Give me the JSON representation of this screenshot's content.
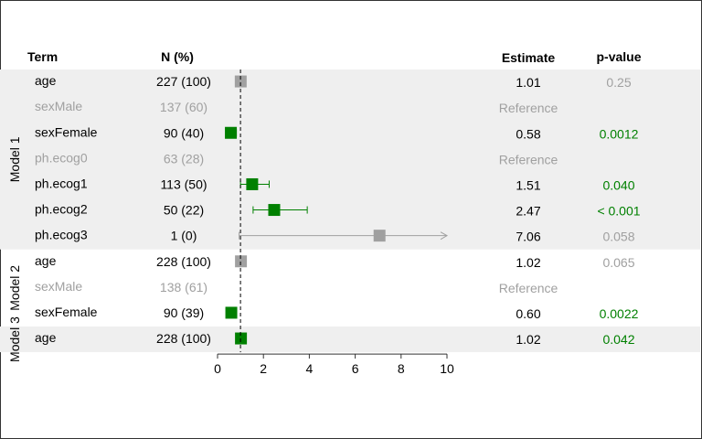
{
  "chart_data": {
    "type": "forest",
    "columns": {
      "term": "Term",
      "n": "N (%)",
      "estimate": "Estimate",
      "pvalue": "p-value"
    },
    "reference_line": 1,
    "xlim": [
      0,
      10
    ],
    "xticks": [
      0,
      2,
      4,
      6,
      8,
      10
    ],
    "colors": {
      "significant": "#008000",
      "not_significant": "#a0a0a0",
      "reference_text": "#a0a0a0",
      "band": "#efefef",
      "text": "#000000"
    },
    "models": [
      {
        "name": "Model 1",
        "rows": [
          {
            "term": "age",
            "n": "227 (100)",
            "estimate": 1.01,
            "lo": 1.0,
            "hi": 1.02,
            "est_label": "1.01",
            "p": "0.25",
            "significant": false,
            "reference": false
          },
          {
            "term": "sexMale",
            "n": "137 (60)",
            "est_label": "Reference",
            "p": "",
            "reference": true
          },
          {
            "term": "sexFemale",
            "n": "90 (40)",
            "estimate": 0.58,
            "lo": 0.41,
            "hi": 0.82,
            "est_label": "0.58",
            "p": "0.0012",
            "significant": true,
            "reference": false
          },
          {
            "term": "ph.ecog0",
            "n": "63 (28)",
            "est_label": "Reference",
            "p": "",
            "reference": true
          },
          {
            "term": "ph.ecog1",
            "n": "113 (50)",
            "estimate": 1.51,
            "lo": 1.0,
            "hi": 2.25,
            "est_label": "1.51",
            "p": "0.040",
            "significant": true,
            "reference": false
          },
          {
            "term": "ph.ecog2",
            "n": "50 (22)",
            "estimate": 2.47,
            "lo": 1.55,
            "hi": 3.91,
            "est_label": "2.47",
            "p": "< 0.001",
            "significant": true,
            "reference": false
          },
          {
            "term": "ph.ecog3",
            "n": "1 (0)",
            "estimate": 7.06,
            "lo": 0.94,
            "hi": 10,
            "arrow": true,
            "est_label": "7.06",
            "p": "0.058",
            "significant": false,
            "reference": false
          }
        ]
      },
      {
        "name": "Model 2",
        "rows": [
          {
            "term": "age",
            "n": "228 (100)",
            "estimate": 1.02,
            "lo": 1.0,
            "hi": 1.03,
            "est_label": "1.02",
            "p": "0.065",
            "significant": false,
            "reference": false
          },
          {
            "term": "sexMale",
            "n": "138 (61)",
            "est_label": "Reference",
            "p": "",
            "reference": true
          },
          {
            "term": "sexFemale",
            "n": "90 (39)",
            "estimate": 0.6,
            "lo": 0.43,
            "hi": 0.83,
            "est_label": "0.60",
            "p": "0.0022",
            "significant": true,
            "reference": false
          }
        ]
      },
      {
        "name": "Model 3",
        "rows": [
          {
            "term": "age",
            "n": "228 (100)",
            "estimate": 1.02,
            "lo": 1.0,
            "hi": 1.04,
            "est_label": "1.02",
            "p": "0.042",
            "significant": true,
            "reference": false
          }
        ]
      }
    ]
  }
}
